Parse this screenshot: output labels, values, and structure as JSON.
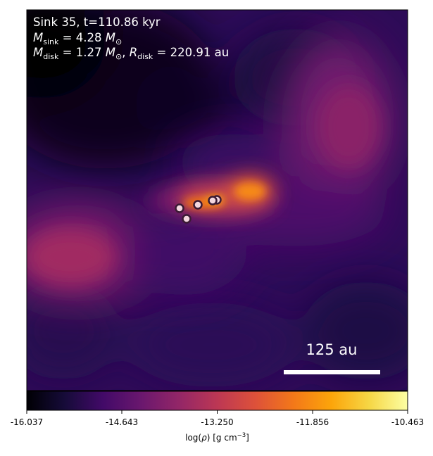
{
  "panel": {
    "title_line": "Sink 35, t=110.86 kyr",
    "sink_mass": {
      "symbol": "M",
      "subscript": "sink",
      "value": "4.28",
      "unit_symbol": "M",
      "unit_subscript": "⊙"
    },
    "disk_info": {
      "mass_symbol": "M",
      "mass_subscript": "disk",
      "mass_value": "1.27",
      "mass_unit_symbol": "M",
      "mass_unit_subscript": "⊙",
      "radius_symbol": "R",
      "radius_subscript": "disk",
      "radius_value": "220.91",
      "radius_unit": "au"
    },
    "scale_bar_label": "125 au"
  },
  "colorbar": {
    "ticks": [
      "-16.037",
      "-14.643",
      "-13.250",
      "-11.856",
      "-10.463"
    ],
    "label_prefix": "log(",
    "label_rho": "ρ",
    "label_mid": ") [g cm",
    "label_exp": "−3",
    "label_suffix": "]",
    "colormap": "inferno"
  },
  "colors": {
    "text_on_map": "#ffffff",
    "marker_edge": "#3a1a33",
    "marker_fill": "#f3d7df",
    "frame": "#000000"
  },
  "sinks_count_note": null
}
